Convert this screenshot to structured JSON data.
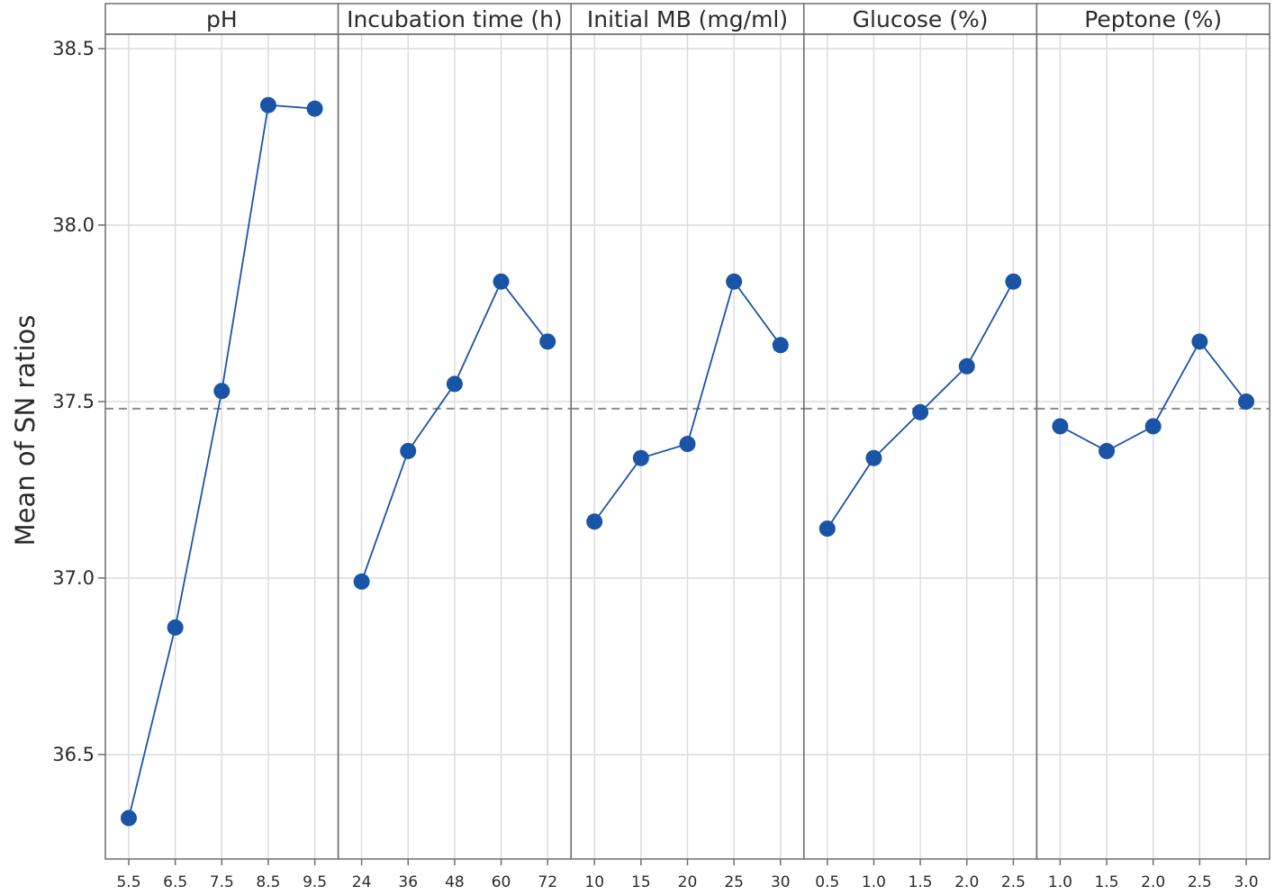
{
  "chart_data": {
    "type": "line",
    "chart_kind": "main effects plot (faceted)",
    "ylabel": "Mean of SN ratios",
    "y_ticks": [
      "36.5",
      "37.0",
      "37.5",
      "38.0",
      "38.5"
    ],
    "ylim": [
      36.2,
      38.55
    ],
    "reference_line": 37.48,
    "grid": true,
    "colors": {
      "series": "#1a54a6",
      "reference": "#8c8c8c",
      "grid": "#dcdcdc",
      "frame": "#6e6e6e"
    },
    "panels": [
      {
        "title": "pH",
        "categories": [
          "5.5",
          "6.5",
          "7.5",
          "8.5",
          "9.5"
        ],
        "values": [
          36.32,
          36.86,
          37.53,
          38.34,
          38.33
        ]
      },
      {
        "title": "Incubation time (h)",
        "categories": [
          "24",
          "36",
          "48",
          "60",
          "72"
        ],
        "values": [
          36.99,
          37.36,
          37.55,
          37.84,
          37.67
        ]
      },
      {
        "title": "Initial MB (mg/ml)",
        "categories": [
          "10",
          "15",
          "20",
          "25",
          "30"
        ],
        "values": [
          37.16,
          37.34,
          37.38,
          37.84,
          37.66
        ]
      },
      {
        "title": "Glucose (%)",
        "categories": [
          "0.5",
          "1.0",
          "1.5",
          "2.0",
          "2.5"
        ],
        "values": [
          37.14,
          37.34,
          37.47,
          37.6,
          37.84
        ]
      },
      {
        "title": "Peptone (%)",
        "categories": [
          "1.0",
          "1.5",
          "2.0",
          "2.5",
          "3.0"
        ],
        "values": [
          37.43,
          37.36,
          37.43,
          37.67,
          37.5
        ]
      }
    ]
  }
}
